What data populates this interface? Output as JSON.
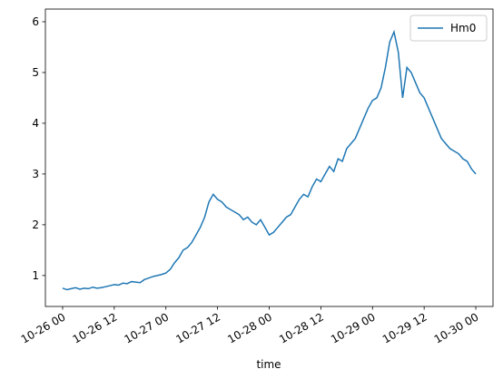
{
  "chart_data": {
    "type": "line",
    "xlabel": "time",
    "x": [
      "10-26 00",
      "10-26 01",
      "10-26 02",
      "10-26 03",
      "10-26 04",
      "10-26 05",
      "10-26 06",
      "10-26 07",
      "10-26 08",
      "10-26 09",
      "10-26 10",
      "10-26 11",
      "10-26 12",
      "10-26 13",
      "10-26 14",
      "10-26 15",
      "10-26 16",
      "10-26 17",
      "10-26 18",
      "10-26 19",
      "10-26 20",
      "10-26 21",
      "10-26 22",
      "10-26 23",
      "10-27 00",
      "10-27 01",
      "10-27 02",
      "10-27 03",
      "10-27 04",
      "10-27 05",
      "10-27 06",
      "10-27 07",
      "10-27 08",
      "10-27 09",
      "10-27 10",
      "10-27 11",
      "10-27 12",
      "10-27 13",
      "10-27 14",
      "10-27 15",
      "10-27 16",
      "10-27 17",
      "10-27 18",
      "10-27 19",
      "10-27 20",
      "10-27 21",
      "10-27 22",
      "10-27 23",
      "10-28 00",
      "10-28 01",
      "10-28 02",
      "10-28 03",
      "10-28 04",
      "10-28 05",
      "10-28 06",
      "10-28 07",
      "10-28 08",
      "10-28 09",
      "10-28 10",
      "10-28 11",
      "10-28 12",
      "10-28 13",
      "10-28 14",
      "10-28 15",
      "10-28 16",
      "10-28 17",
      "10-28 18",
      "10-28 19",
      "10-28 20",
      "10-28 21",
      "10-28 22",
      "10-28 23",
      "10-29 00",
      "10-29 01",
      "10-29 02",
      "10-29 03",
      "10-29 04",
      "10-29 05",
      "10-29 06",
      "10-29 07",
      "10-29 08",
      "10-29 09",
      "10-29 10",
      "10-29 11",
      "10-29 12",
      "10-29 13",
      "10-29 14",
      "10-29 15",
      "10-29 16",
      "10-29 17",
      "10-29 18",
      "10-29 19",
      "10-29 20",
      "10-29 21",
      "10-29 22",
      "10-29 23",
      "10-30 00"
    ],
    "series": [
      {
        "name": "Hm0",
        "color": "#1f77b4",
        "values": [
          0.75,
          0.72,
          0.74,
          0.76,
          0.73,
          0.75,
          0.74,
          0.77,
          0.75,
          0.76,
          0.78,
          0.8,
          0.82,
          0.81,
          0.85,
          0.84,
          0.88,
          0.87,
          0.86,
          0.92,
          0.95,
          0.98,
          1.0,
          1.02,
          1.05,
          1.12,
          1.25,
          1.35,
          1.5,
          1.55,
          1.65,
          1.8,
          1.95,
          2.15,
          2.45,
          2.6,
          2.5,
          2.45,
          2.35,
          2.3,
          2.25,
          2.2,
          2.1,
          2.15,
          2.05,
          2.0,
          2.1,
          1.95,
          1.8,
          1.85,
          1.95,
          2.05,
          2.15,
          2.2,
          2.35,
          2.5,
          2.6,
          2.55,
          2.75,
          2.9,
          2.85,
          3.0,
          3.15,
          3.05,
          3.3,
          3.25,
          3.5,
          3.6,
          3.7,
          3.9,
          4.1,
          4.3,
          4.45,
          4.5,
          4.7,
          5.1,
          5.6,
          5.8,
          5.4,
          4.5,
          5.1,
          5.0,
          4.8,
          4.6,
          4.5,
          4.3,
          4.1,
          3.9,
          3.7,
          3.6,
          3.5,
          3.45,
          3.4,
          3.3,
          3.25,
          3.1,
          3.0
        ]
      }
    ],
    "xlim": [
      "10-25 20",
      "10-30 04"
    ],
    "xticks": [
      "10-26 00",
      "10-26 12",
      "10-27 00",
      "10-27 12",
      "10-28 00",
      "10-28 12",
      "10-29 00",
      "10-29 12",
      "10-30 00"
    ],
    "ylim": [
      0.39,
      6.25
    ],
    "yticks": [
      1,
      2,
      3,
      4,
      5,
      6
    ],
    "legend": "upper right"
  }
}
